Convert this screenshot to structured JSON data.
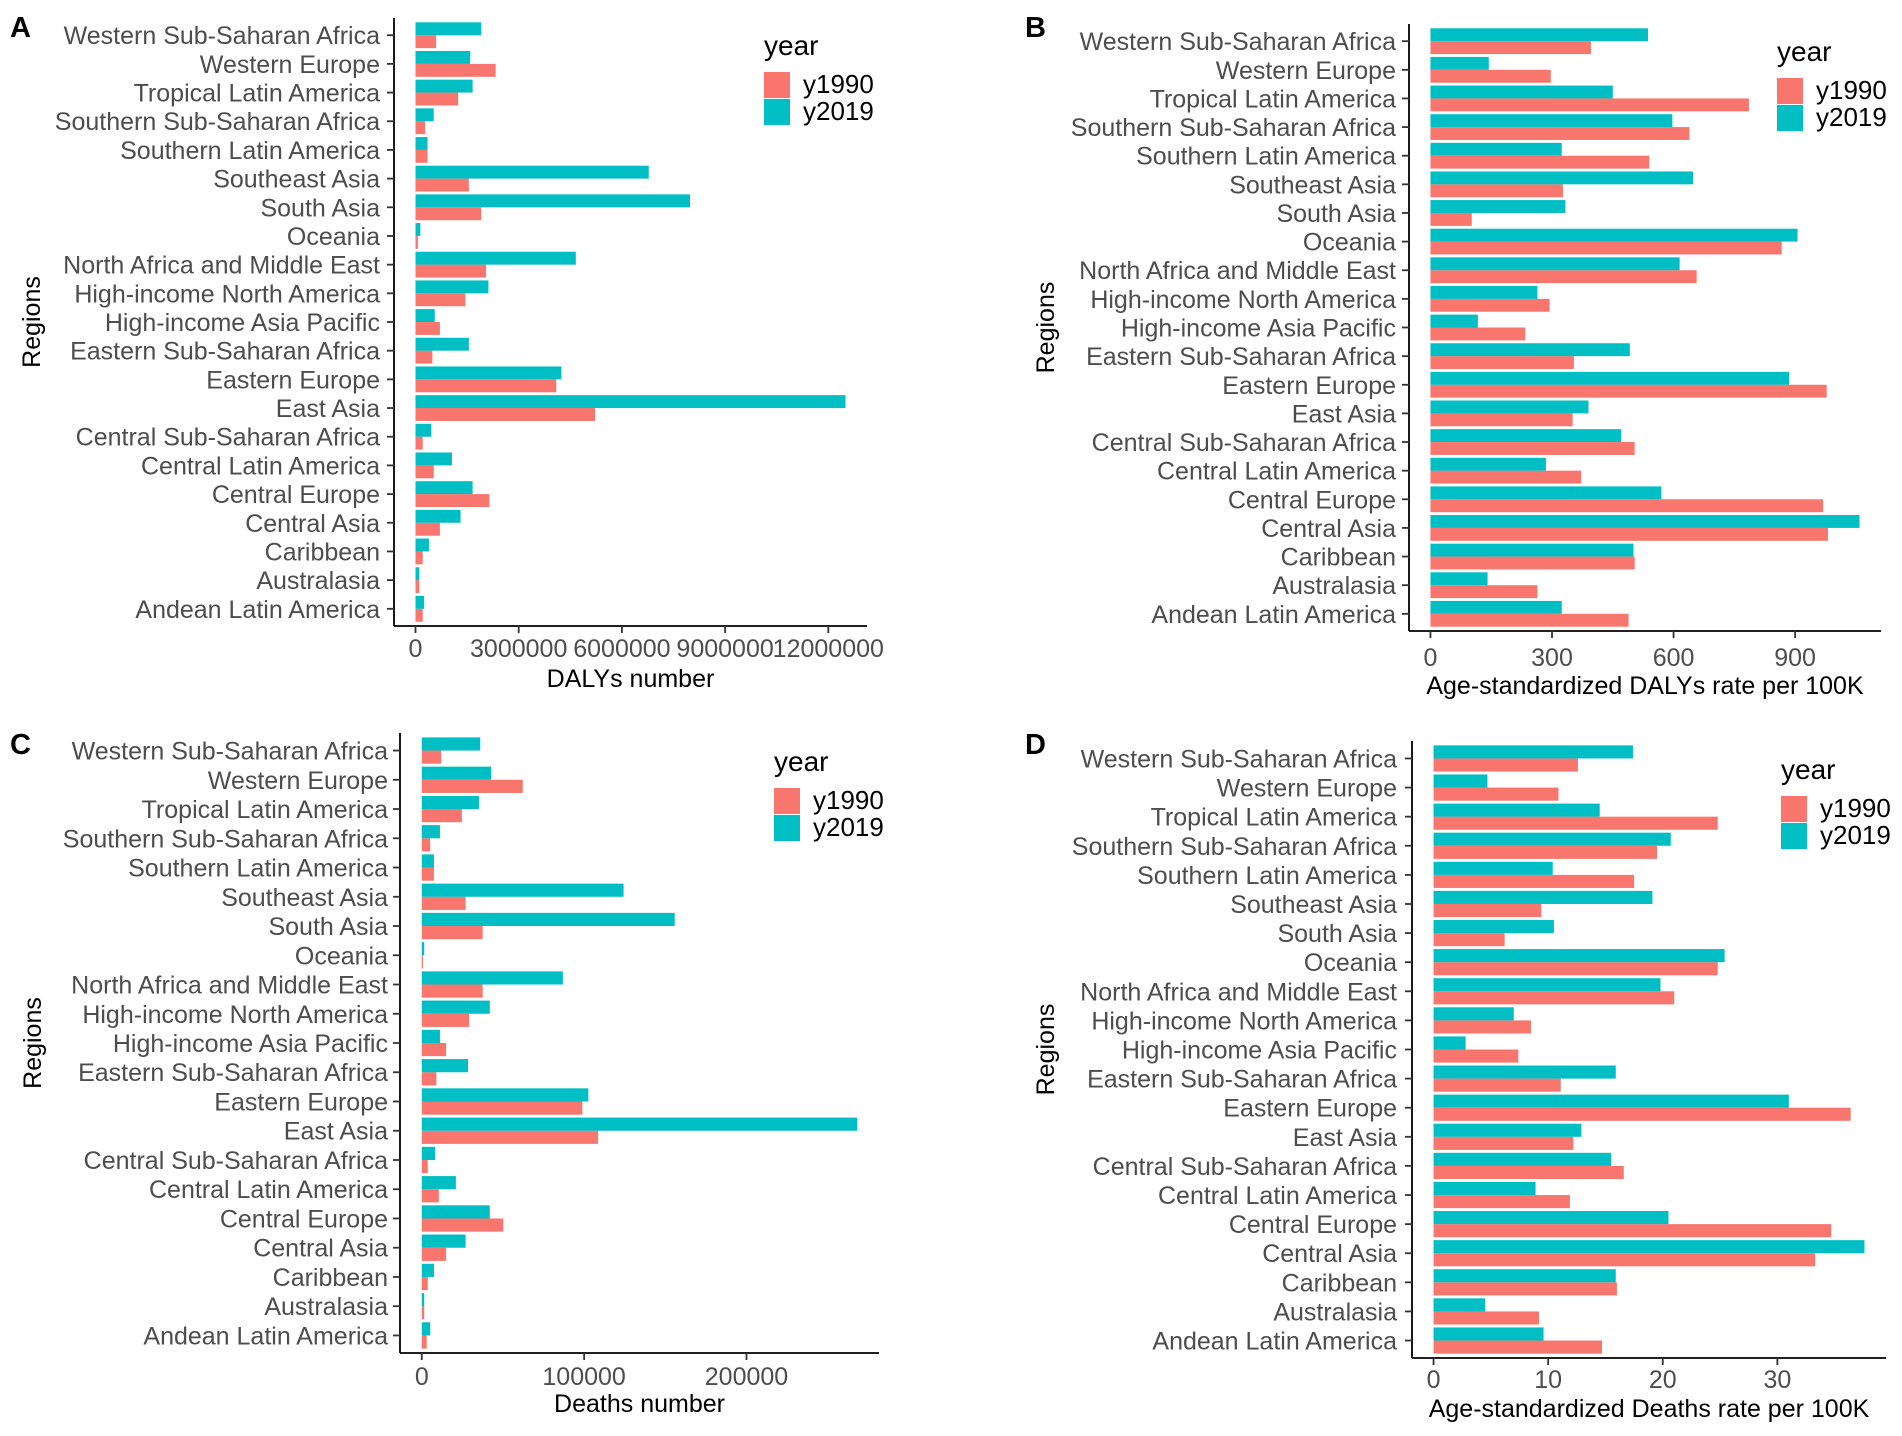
{
  "colors": {
    "y1990": "#F8766D",
    "y2019": "#00BFC4"
  },
  "chart_data": [
    {
      "panel": "A",
      "type": "bar",
      "xlabel": "DALYs number",
      "ylabel": "Regions",
      "xlim": [
        -625000,
        13125000
      ],
      "xticks": [
        0,
        3000000,
        6000000,
        9000000,
        12000000
      ],
      "xtick_labels": [
        "0",
        "3000000",
        "6000000",
        "9000000",
        "12000000"
      ],
      "legend": {
        "title": "year",
        "position": "top-right"
      },
      "categories": [
        "Western Sub-Saharan Africa",
        "Western Europe",
        "Tropical Latin America",
        "Southern Sub-Saharan Africa",
        "Southern Latin America",
        "Southeast Asia",
        "South Asia",
        "Oceania",
        "North Africa and Middle East",
        "High-income North America",
        "High-income Asia Pacific",
        "Eastern Sub-Saharan Africa",
        "Eastern Europe",
        "East Asia",
        "Central Sub-Saharan Africa",
        "Central Latin America",
        "Central Europe",
        "Central Asia",
        "Caribbean",
        "Australasia",
        "Andean Latin America"
      ],
      "series": [
        {
          "name": "y1990",
          "values": [
            600000,
            2330000,
            1240000,
            280000,
            350000,
            1550000,
            1910000,
            70000,
            2050000,
            1450000,
            710000,
            490000,
            4090000,
            5220000,
            210000,
            530000,
            2150000,
            710000,
            210000,
            110000,
            210000
          ]
        },
        {
          "name": "y2019",
          "values": [
            1910000,
            1590000,
            1660000,
            530000,
            350000,
            6780000,
            7980000,
            140000,
            4660000,
            2120000,
            560000,
            1550000,
            4240000,
            12500000,
            460000,
            1060000,
            1660000,
            1310000,
            390000,
            110000,
            250000
          ]
        }
      ]
    },
    {
      "panel": "B",
      "type": "bar",
      "xlabel": "Age-standardized DALYs rate per 100K",
      "ylabel": "Regions",
      "xlim": [
        -52.95,
        1111.95
      ],
      "xticks": [
        0,
        300,
        600,
        900
      ],
      "xtick_labels": [
        "0",
        "300",
        "600",
        "900"
      ],
      "legend": {
        "title": "year",
        "position": "top-right"
      },
      "categories": [
        "Western Sub-Saharan Africa",
        "Western Europe",
        "Tropical Latin America",
        "Southern Sub-Saharan Africa",
        "Southern Latin America",
        "Southeast Asia",
        "South Asia",
        "Oceania",
        "North Africa and Middle East",
        "High-income North America",
        "High-income Asia Pacific",
        "Eastern Sub-Saharan Africa",
        "Eastern Europe",
        "East Asia",
        "Central Sub-Saharan Africa",
        "Central Latin America",
        "Central Europe",
        "Central Asia",
        "Caribbean",
        "Australasia",
        "Andean Latin America"
      ],
      "series": [
        {
          "name": "y1990",
          "values": [
            396,
            297,
            786,
            639,
            540,
            327,
            102,
            867,
            657,
            294,
            234,
            354,
            978,
            351,
            504,
            372,
            969,
            981,
            504,
            264,
            489
          ]
        },
        {
          "name": "y2019",
          "values": [
            537,
            144,
            450,
            597,
            324,
            648,
            333,
            906,
            615,
            264,
            117,
            492,
            885,
            390,
            471,
            285,
            570,
            1059,
            501,
            141,
            324
          ]
        }
      ]
    },
    {
      "panel": "C",
      "type": "bar",
      "xlabel": "Deaths number",
      "ylabel": "Regions",
      "xlim": [
        -13410,
        281610
      ],
      "xticks": [
        0,
        100000,
        200000
      ],
      "xtick_labels": [
        "0",
        "100000",
        "200000"
      ],
      "legend": {
        "title": "year",
        "position": "top-right"
      },
      "categories": [
        "Western Sub-Saharan Africa",
        "Western Europe",
        "Tropical Latin America",
        "Southern Sub-Saharan Africa",
        "Southern Latin America",
        "Southeast Asia",
        "South Asia",
        "Oceania",
        "North Africa and Middle East",
        "High-income North America",
        "High-income Asia Pacific",
        "Eastern Sub-Saharan Africa",
        "Eastern Europe",
        "East Asia",
        "Central Sub-Saharan Africa",
        "Central Latin America",
        "Central Europe",
        "Central Asia",
        "Caribbean",
        "Australasia",
        "Andean Latin America"
      ],
      "series": [
        {
          "name": "y1990",
          "values": [
            12000,
            62200,
            24700,
            5200,
            7500,
            27000,
            37500,
            750,
            37500,
            29200,
            15000,
            9000,
            98900,
            108600,
            3700,
            10500,
            50200,
            15000,
            3700,
            1500,
            3000
          ]
        },
        {
          "name": "y2019",
          "values": [
            36000,
            42700,
            35200,
            11200,
            7500,
            124300,
            155800,
            1500,
            86900,
            41900,
            11200,
            28500,
            102600,
            268200,
            8200,
            21000,
            41900,
            27000,
            7500,
            1500,
            5200
          ]
        }
      ]
    },
    {
      "panel": "D",
      "type": "bar",
      "xlabel": "Age-standardized Deaths rate per 100K",
      "ylabel": "Regions",
      "xlim": [
        -1.88,
        39.48
      ],
      "xticks": [
        0,
        10,
        20,
        30
      ],
      "xtick_labels": [
        "0",
        "10",
        "20",
        "30"
      ],
      "legend": {
        "title": "year",
        "position": "top-right"
      },
      "categories": [
        "Western Sub-Saharan Africa",
        "Western Europe",
        "Tropical Latin America",
        "Southern Sub-Saharan Africa",
        "Southern Latin America",
        "Southeast Asia",
        "South Asia",
        "Oceania",
        "North Africa and Middle East",
        "High-income North America",
        "High-income Asia Pacific",
        "Eastern Sub-Saharan Africa",
        "Eastern Europe",
        "East Asia",
        "Central Sub-Saharan Africa",
        "Central Latin America",
        "Central Europe",
        "Central Asia",
        "Caribbean",
        "Australasia",
        "Andean Latin America"
      ],
      "series": [
        {
          "name": "y1990",
          "values": [
            12.6,
            10.9,
            24.8,
            19.5,
            17.5,
            9.4,
            6.2,
            24.8,
            21.0,
            8.5,
            7.4,
            11.1,
            36.4,
            12.2,
            16.6,
            11.9,
            34.7,
            33.3,
            16.0,
            9.2,
            14.7
          ]
        },
        {
          "name": "y2019",
          "values": [
            17.4,
            4.7,
            14.5,
            20.7,
            10.4,
            19.1,
            10.5,
            25.4,
            19.8,
            7.0,
            2.8,
            15.9,
            31.0,
            12.9,
            15.5,
            8.9,
            20.5,
            37.6,
            15.9,
            4.5,
            9.6
          ]
        }
      ]
    }
  ]
}
